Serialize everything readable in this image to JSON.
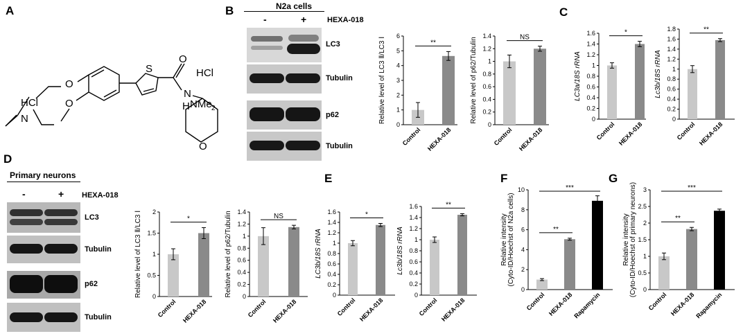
{
  "panels": {
    "A": "A",
    "B": "B",
    "C": "C",
    "D": "D",
    "E": "E",
    "F": "F",
    "G": "G"
  },
  "structure": {
    "hcl_left": "HCl",
    "n_label": "N",
    "o_ether1": "O",
    "o_ether2": "O",
    "s_label": "S",
    "o_carbonyl": "O",
    "nh_n": "N",
    "nh_h": "H",
    "hcl_right": "HCl",
    "nme2": "NMe",
    "nme2_sub": "2",
    "o_ring": "O"
  },
  "blot_b": {
    "header": "N2a cells",
    "minus": "-",
    "plus": "+",
    "treatment": "HEXA-018",
    "rows": [
      "LC3",
      "Tubulin",
      "p62",
      "Tubulin"
    ]
  },
  "blot_d": {
    "header": "Primary neurons",
    "minus": "-",
    "plus": "+",
    "treatment": "HEXA-018",
    "rows": [
      "LC3",
      "Tubulin",
      "p62",
      "Tubulin"
    ]
  },
  "colors": {
    "control": "#c8c8c8",
    "hexa": "#8a8a8a",
    "rapamycin": "#000000"
  },
  "chart_data": [
    {
      "id": "B1",
      "type": "bar",
      "categories": [
        "Control",
        "HEXA-018"
      ],
      "values": [
        1.0,
        4.65
      ],
      "errors": [
        0.5,
        0.3
      ],
      "ylabel": "Relative level of LC3 Ⅱ/LC3 Ⅰ",
      "ylim": [
        0,
        6
      ],
      "yticks": [
        0,
        1,
        2,
        3,
        4,
        5,
        6
      ],
      "tick_labels": [
        "0",
        "1",
        "2",
        "3",
        "4",
        "5",
        "6"
      ],
      "sig": [
        {
          "a": 0,
          "b": 1,
          "label": "**"
        }
      ],
      "italic_ylabel": false
    },
    {
      "id": "B2",
      "type": "bar",
      "categories": [
        "Control",
        "HEXA-018"
      ],
      "values": [
        1.0,
        1.2
      ],
      "errors": [
        0.1,
        0.04
      ],
      "ylabel": "Relative level of p62/Tubulin",
      "ylim": [
        0,
        1.4
      ],
      "yticks": [
        0,
        0.2,
        0.4,
        0.6,
        0.8,
        1,
        1.2,
        1.4
      ],
      "tick_labels": [
        "0",
        "0.2",
        "0.4",
        "0.6",
        "0.8",
        "1",
        "1.2",
        "1.4"
      ],
      "sig": [
        {
          "a": 0,
          "b": 1,
          "label": "NS"
        }
      ],
      "italic_ylabel": false
    },
    {
      "id": "C1",
      "type": "bar",
      "categories": [
        "Control",
        "HEXA-018"
      ],
      "values": [
        1.0,
        1.4
      ],
      "errors": [
        0.05,
        0.05
      ],
      "ylabel": "LC3a/18S rRNA",
      "ylim": [
        0,
        1.6
      ],
      "yticks": [
        0,
        0.2,
        0.4,
        0.6,
        0.8,
        1,
        1.2,
        1.4,
        1.6
      ],
      "tick_labels": [
        "0",
        "0.2",
        "0.4",
        "0.6",
        "0.8",
        "1",
        "1.2",
        "1.4",
        "1.6"
      ],
      "sig": [
        {
          "a": 0,
          "b": 1,
          "label": "*"
        }
      ],
      "italic_ylabel": true
    },
    {
      "id": "C2",
      "type": "bar",
      "categories": [
        "Control",
        "HEXA-018"
      ],
      "values": [
        1.0,
        1.58
      ],
      "errors": [
        0.07,
        0.03
      ],
      "ylabel": "Lc3b/18S rRNA",
      "ylim": [
        0,
        1.8
      ],
      "yticks": [
        0,
        0.2,
        0.4,
        0.6,
        0.8,
        1,
        1.2,
        1.4,
        1.6,
        1.8
      ],
      "tick_labels": [
        "0",
        "0.2",
        "0.4",
        "0.6",
        "0.8",
        "1",
        "1.2",
        "1.4",
        "1.6",
        "1.8"
      ],
      "sig": [
        {
          "a": 0,
          "b": 1,
          "label": "**"
        }
      ],
      "italic_ylabel": true
    },
    {
      "id": "D1",
      "type": "bar",
      "categories": [
        "Control",
        "HEXA-018"
      ],
      "values": [
        1.0,
        1.5
      ],
      "errors": [
        0.13,
        0.13
      ],
      "ylabel": "Relative level of LC3 Ⅱ/LC3 Ⅰ",
      "ylim": [
        0,
        2
      ],
      "yticks": [
        0,
        0.5,
        1,
        1.5,
        2
      ],
      "tick_labels": [
        "0",
        "0.5",
        "1",
        "1.5",
        "2"
      ],
      "sig": [
        {
          "a": 0,
          "b": 1,
          "label": "*"
        }
      ],
      "italic_ylabel": false
    },
    {
      "id": "D2",
      "type": "bar",
      "categories": [
        "Control",
        "HEXA-018"
      ],
      "values": [
        1.0,
        1.15
      ],
      "errors": [
        0.14,
        0.03
      ],
      "ylabel": "Relative level of p62/Tubulin",
      "ylim": [
        0,
        1.4
      ],
      "yticks": [
        0,
        0.2,
        0.4,
        0.6,
        0.8,
        1,
        1.2,
        1.4
      ],
      "tick_labels": [
        "0",
        "0.2",
        "0.4",
        "0.6",
        "0.8",
        "1",
        "1.2",
        "1.4"
      ],
      "sig": [
        {
          "a": 0,
          "b": 1,
          "label": "NS"
        }
      ],
      "italic_ylabel": false
    },
    {
      "id": "E1",
      "type": "bar",
      "categories": [
        "Control",
        "HEXA-018"
      ],
      "values": [
        1.0,
        1.35
      ],
      "errors": [
        0.05,
        0.03
      ],
      "ylabel": "LC3b/18S rRNA",
      "ylim": [
        0,
        1.6
      ],
      "yticks": [
        0,
        0.2,
        0.4,
        0.6,
        0.8,
        1,
        1.2,
        1.4,
        1.6
      ],
      "tick_labels": [
        "0",
        "0.2",
        "0.4",
        "0.6",
        "0.8",
        "1",
        "1.2",
        "1.4",
        "1.6"
      ],
      "sig": [
        {
          "a": 0,
          "b": 1,
          "label": "*"
        }
      ],
      "italic_ylabel": true
    },
    {
      "id": "E2",
      "type": "bar",
      "categories": [
        "Control",
        "HEXA-018"
      ],
      "values": [
        1.0,
        1.45
      ],
      "errors": [
        0.05,
        0.02
      ],
      "ylabel": "Lc3b/18S rRNA",
      "ylim": [
        0,
        1.6
      ],
      "yticks": [
        0,
        0.2,
        0.4,
        0.6,
        0.8,
        1,
        1.2,
        1.4,
        1.6
      ],
      "tick_labels": [
        "0",
        "0.2",
        "0.4",
        "0.6",
        "0.8",
        "1",
        "1.2",
        "1.4",
        "1.6"
      ],
      "sig": [
        {
          "a": 0,
          "b": 1,
          "label": "**"
        }
      ],
      "italic_ylabel": true
    },
    {
      "id": "F",
      "type": "bar",
      "categories": [
        "Control",
        "HEXA-018",
        "Rapamycin"
      ],
      "values": [
        1.0,
        5.05,
        8.9
      ],
      "errors": [
        0.1,
        0.1,
        0.5
      ],
      "ylabel": "Relative intensity",
      "ylabel2": "(Cyto-ID/Hoechst of N2a cells)",
      "ylim": [
        0,
        10
      ],
      "yticks": [
        0,
        2,
        4,
        6,
        8,
        10
      ],
      "tick_labels": [
        "0",
        "2",
        "4",
        "6",
        "8",
        "10"
      ],
      "sig": [
        {
          "a": 0,
          "b": 1,
          "label": "**"
        },
        {
          "a": 0,
          "b": 2,
          "label": "***"
        }
      ],
      "italic_ylabel": false
    },
    {
      "id": "G",
      "type": "bar",
      "categories": [
        "Control",
        "HEXA-018",
        "Rapamycin"
      ],
      "values": [
        1.0,
        1.82,
        2.37
      ],
      "errors": [
        0.1,
        0.05,
        0.05
      ],
      "ylabel": "Relative intensity",
      "ylabel2": "(Cyto-ID/Hoechst of primary neurons)",
      "ylim": [
        0,
        3
      ],
      "yticks": [
        0,
        0.5,
        1,
        1.5,
        2,
        2.5,
        3
      ],
      "tick_labels": [
        "0",
        "0.5",
        "1",
        "1.5",
        "2",
        "2.5",
        "3"
      ],
      "sig": [
        {
          "a": 0,
          "b": 1,
          "label": "**"
        },
        {
          "a": 0,
          "b": 2,
          "label": "***"
        }
      ],
      "italic_ylabel": false
    }
  ]
}
